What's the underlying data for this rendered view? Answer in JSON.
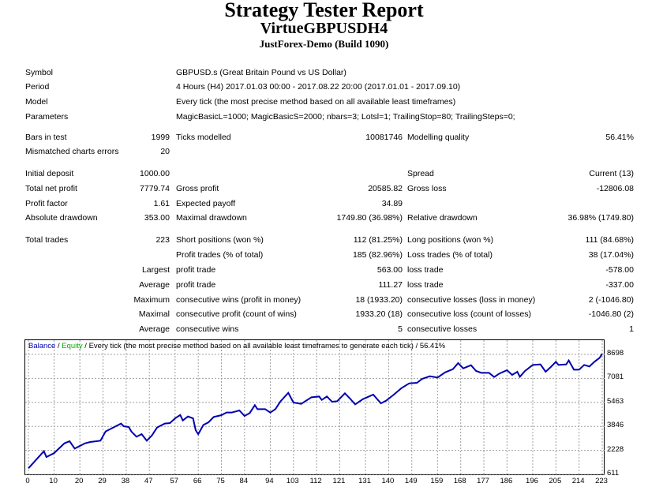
{
  "header": {
    "title": "Strategy Tester Report",
    "expert": "VirtueGBPUSDH4",
    "account": "JustForex-Demo (Build 1090)"
  },
  "info": [
    {
      "label": "Symbol",
      "value": "GBPUSD.s (Great Britain Pound vs US Dollar)"
    },
    {
      "label": "Period",
      "value": "4 Hours (H4) 2017.01.03 00:00 - 2017.08.22 20:00 (2017.01.01 - 2017.09.10)"
    },
    {
      "label": "Model",
      "value": "Every tick (the most precise method based on all available least timeframes)"
    },
    {
      "label": "Parameters",
      "value": "MagicBasicL=1000; MagicBasicS=2000; nbars=3; Lotsl=1; TrailingStop=80; TrailingSteps=0;"
    }
  ],
  "stats": [
    {
      "l1": "Bars in test",
      "v1": "1999",
      "l2": "Ticks modelled",
      "v2": "10081746",
      "l3": "Modelling quality",
      "v3": "56.41%"
    },
    {
      "l1": "Mismatched charts errors",
      "v1": "20"
    },
    {
      "l1": "Initial deposit",
      "v1": "1000.00",
      "l3": "Spread",
      "v3": "Current (13)"
    },
    {
      "l1": "Total net profit",
      "v1": "7779.74",
      "l2": "Gross profit",
      "v2": "20585.82",
      "l3": "Gross loss",
      "v3": "-12806.08"
    },
    {
      "l1": "Profit factor",
      "v1": "1.61",
      "l2": "Expected payoff",
      "v2": "34.89"
    },
    {
      "l1": "Absolute drawdown",
      "v1": "353.00",
      "l2": "Maximal drawdown",
      "v2": "1749.80 (36.98%)",
      "l3": "Relative drawdown",
      "v3": "36.98% (1749.80)"
    },
    {
      "l1": "Total trades",
      "v1": "223",
      "l2": "Short positions (won %)",
      "v2": "112 (81.25%)",
      "l3": "Long positions (won %)",
      "v3": "111 (84.68%)"
    },
    {
      "l2": "Profit trades (% of total)",
      "v2": "185 (82.96%)",
      "l3": "Loss trades (% of total)",
      "v3": "38 (17.04%)"
    },
    {
      "pre": "Largest",
      "l2": "profit trade",
      "v2": "563.00",
      "l3": "loss trade",
      "v3": "-578.00"
    },
    {
      "pre": "Average",
      "l2": "profit trade",
      "v2": "111.27",
      "l3": "loss trade",
      "v3": "-337.00"
    },
    {
      "pre": "Maximum",
      "l2": "consecutive wins (profit in money)",
      "v2": "18 (1933.20)",
      "l3": "consecutive losses (loss in money)",
      "v3": "2 (-1046.80)"
    },
    {
      "pre": "Maximal",
      "l2": "consecutive profit (count of wins)",
      "v2": "1933.20 (18)",
      "l3": "consecutive loss (count of losses)",
      "v3": "-1046.80 (2)"
    },
    {
      "pre": "Average",
      "l2": "consecutive wins",
      "v2": "5",
      "l3": "consecutive losses",
      "v3": "1"
    }
  ],
  "chart_data": {
    "type": "line",
    "legend": {
      "balance": "Balance",
      "sep1": " / ",
      "equity": "Equity",
      "rest": " / Every tick (the most precise method based on all available least timeframes to generate each tick) / 56.41%"
    },
    "colors": {
      "balance": "#0000b0",
      "equity": "#00b000",
      "grid": "#a0a0a0"
    },
    "xlabel": "",
    "ylabel": "",
    "xlim": [
      0,
      223
    ],
    "ylim": [
      611,
      8698
    ],
    "xticks": [
      0,
      10,
      20,
      29,
      38,
      47,
      57,
      66,
      75,
      84,
      94,
      103,
      112,
      121,
      131,
      140,
      149,
      159,
      168,
      177,
      186,
      196,
      205,
      214,
      223
    ],
    "yticks": [
      611,
      2228,
      3846,
      5463,
      7081,
      8698
    ],
    "series": [
      {
        "name": "Balance",
        "x": [
          0,
          6,
          7,
          10,
          14,
          16,
          18,
          22,
          24,
          28,
          30,
          33,
          36,
          37,
          39,
          40,
          42,
          44,
          46,
          48,
          50,
          53,
          55,
          57,
          59,
          60,
          62,
          64,
          65,
          66,
          68,
          70,
          72,
          75,
          77,
          79,
          82,
          84,
          86,
          88,
          89,
          92,
          94,
          96,
          98,
          101,
          103,
          106,
          110,
          113,
          114,
          116,
          118,
          120,
          123,
          125,
          127,
          130,
          134,
          137,
          139,
          142,
          145,
          148,
          151,
          153,
          156,
          159,
          162,
          165,
          167,
          169,
          172,
          174,
          176,
          179,
          181,
          183,
          186,
          188,
          190,
          191,
          193,
          196,
          199,
          201,
          203,
          205,
          206,
          209,
          210,
          212,
          214,
          216,
          218,
          220,
          222,
          223
        ],
        "y": [
          1019,
          2172,
          1781,
          2048,
          2704,
          2846,
          2350,
          2704,
          2792,
          2881,
          3502,
          3768,
          4034,
          3856,
          3800,
          3502,
          3147,
          3324,
          2881,
          3236,
          3768,
          4034,
          4069,
          4388,
          4619,
          4246,
          4513,
          4388,
          3590,
          3324,
          3945,
          4122,
          4477,
          4601,
          4779,
          4779,
          4921,
          4548,
          4743,
          5275,
          5009,
          5009,
          4779,
          5009,
          5541,
          6108,
          5452,
          5364,
          5807,
          5860,
          5630,
          5860,
          5505,
          5541,
          6073,
          5718,
          5328,
          5683,
          5984,
          5399,
          5576,
          5984,
          6427,
          6747,
          6783,
          7049,
          7226,
          7138,
          7493,
          7705,
          8113,
          7758,
          7971,
          7581,
          7457,
          7457,
          7173,
          7404,
          7634,
          7315,
          7528,
          7191,
          7581,
          7989,
          8024,
          7528,
          7847,
          8202,
          7989,
          8024,
          8290,
          7670,
          7670,
          7989,
          7882,
          8202,
          8468,
          8734
        ]
      }
    ]
  }
}
